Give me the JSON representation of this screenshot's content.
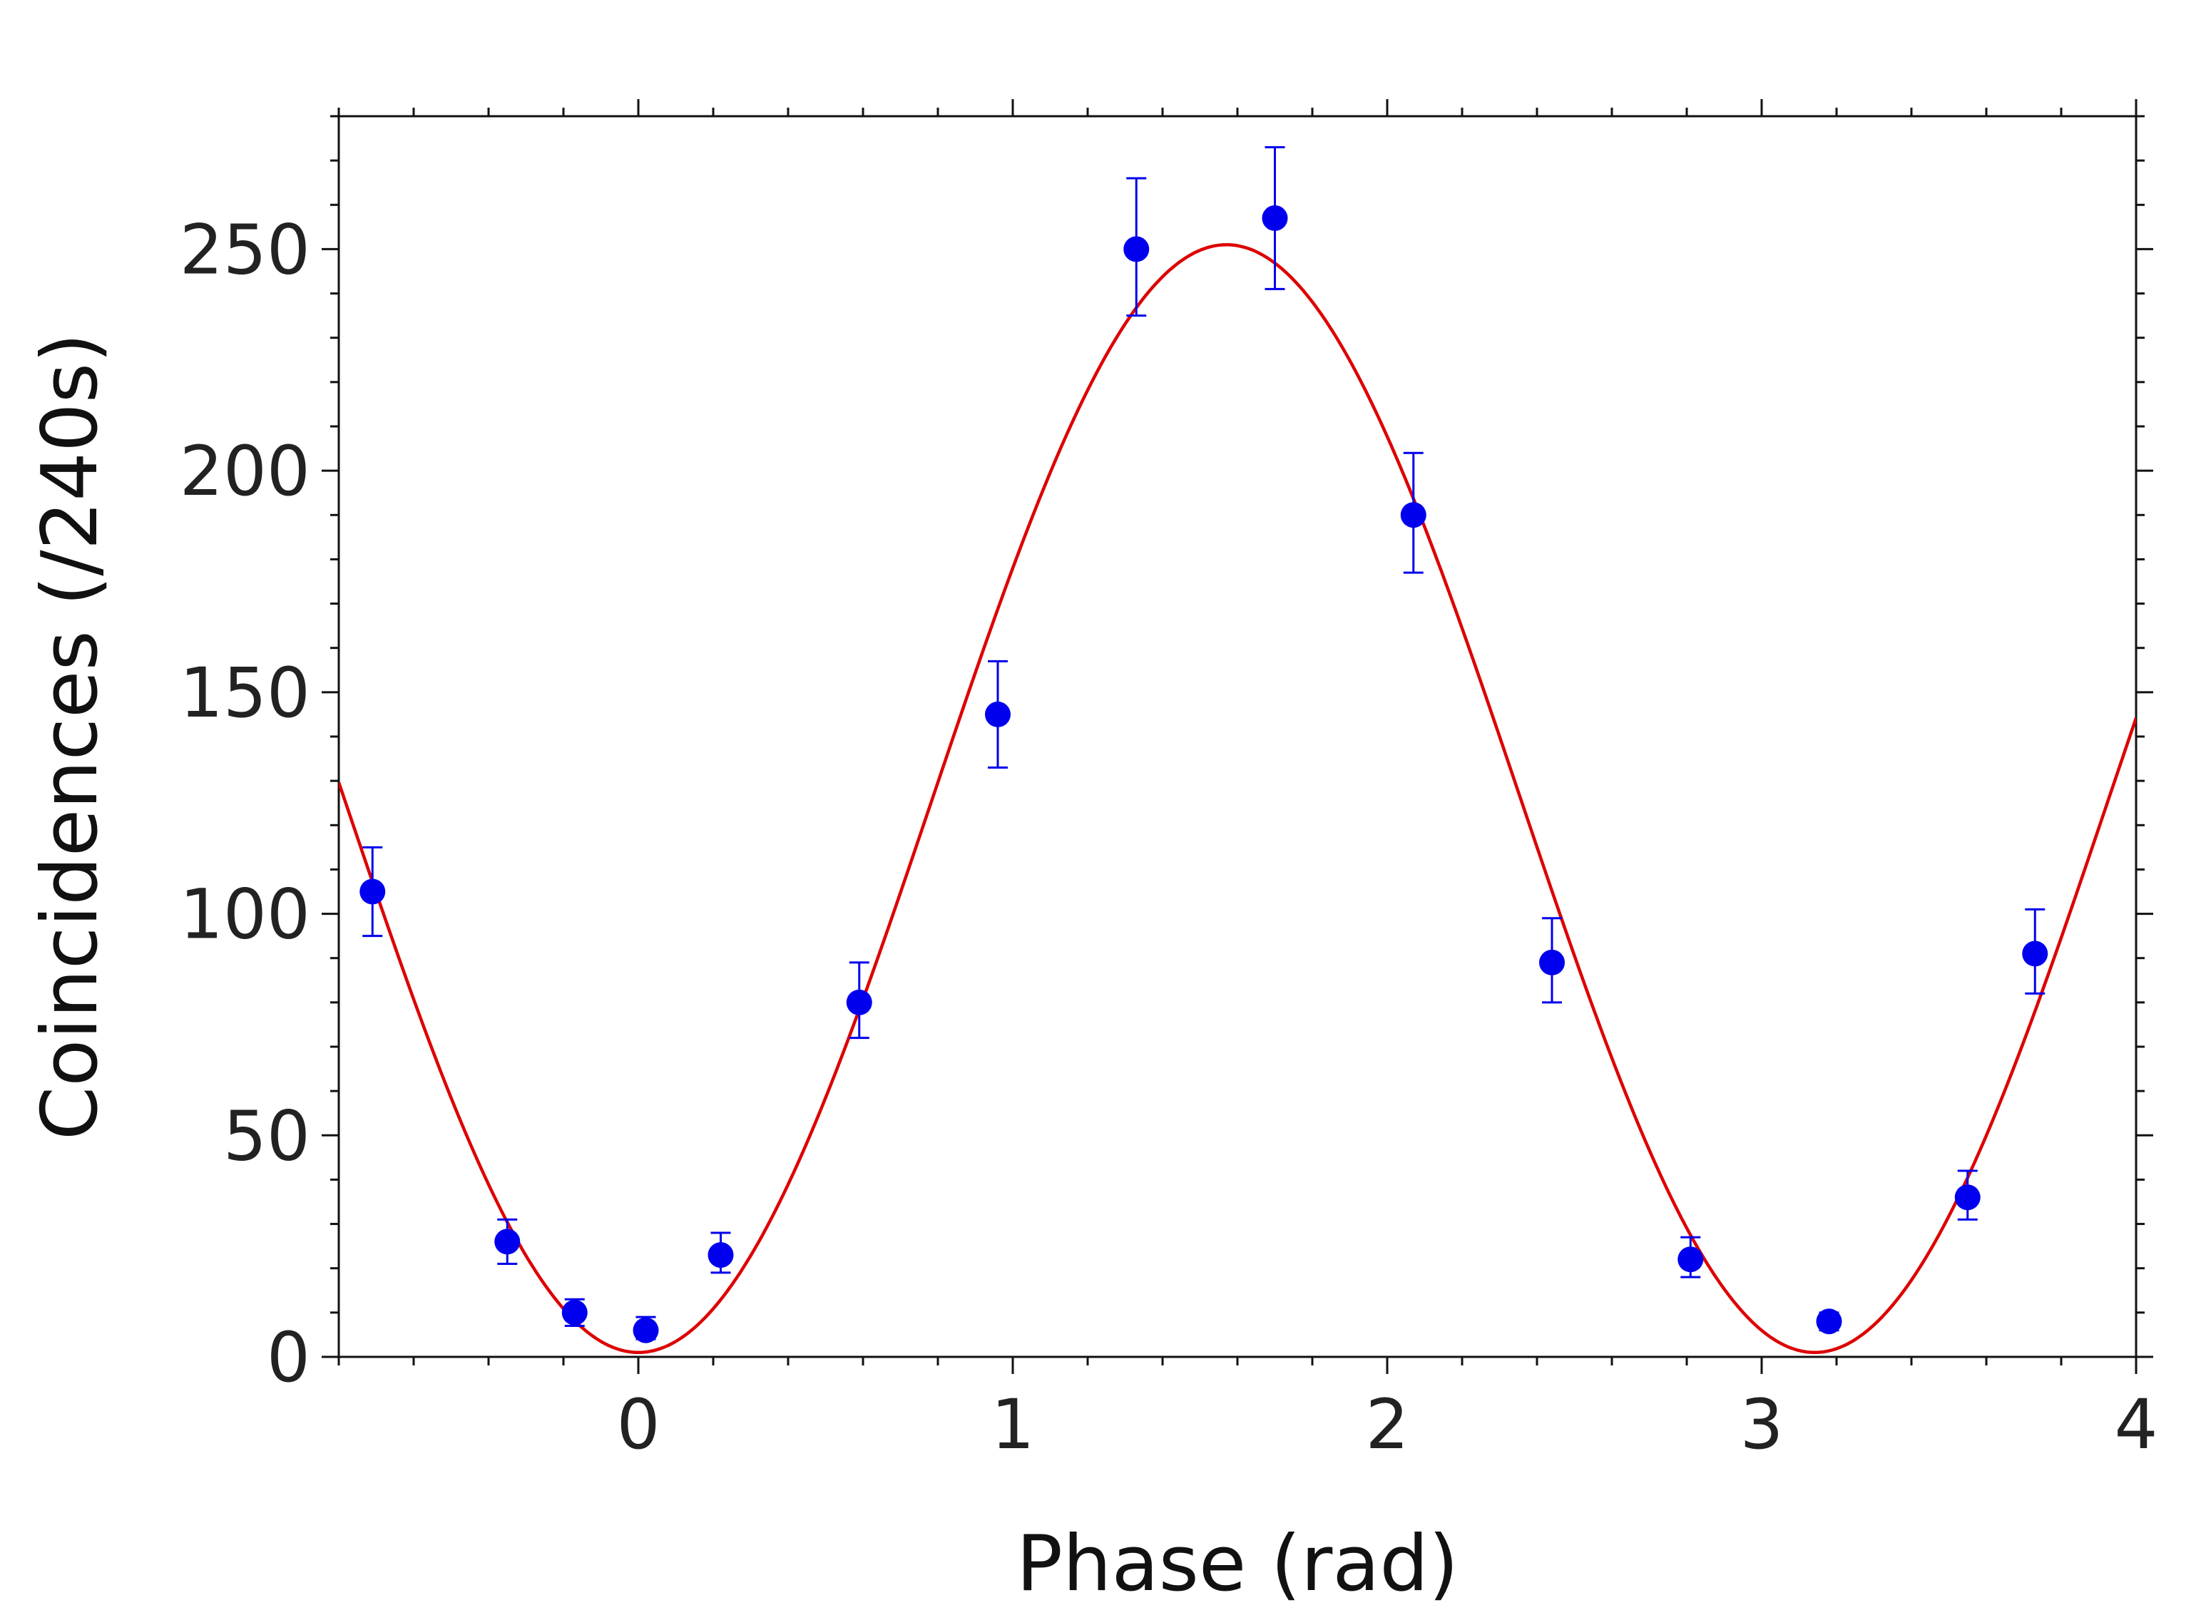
{
  "chart_data": {
    "type": "scatter",
    "title": "",
    "xlabel": "Phase (rad)",
    "ylabel": "Coincidences (/240s)",
    "xlim": [
      -0.8,
      4
    ],
    "ylim": [
      0,
      280
    ],
    "x_ticks": [
      0,
      1,
      2,
      3,
      4
    ],
    "x_tick_labels": [
      "0",
      "1",
      "2",
      "3",
      "4"
    ],
    "y_ticks": [
      0,
      50,
      100,
      150,
      200,
      250
    ],
    "y_tick_labels": [
      "0",
      "50",
      "100",
      "150",
      "200",
      "250"
    ],
    "grid": false,
    "series": [
      {
        "kind": "points_with_error_bars",
        "color": "#0000ee",
        "points": [
          {
            "x": -0.71,
            "y": 105,
            "lo": 95,
            "hi": 115
          },
          {
            "x": -0.35,
            "y": 26,
            "lo": 21,
            "hi": 31
          },
          {
            "x": -0.17,
            "y": 10,
            "lo": 7,
            "hi": 13
          },
          {
            "x": 0.02,
            "y": 6,
            "lo": 4,
            "hi": 9
          },
          {
            "x": 0.22,
            "y": 23,
            "lo": 19,
            "hi": 28
          },
          {
            "x": 0.59,
            "y": 80,
            "lo": 72,
            "hi": 89
          },
          {
            "x": 0.96,
            "y": 145,
            "lo": 133,
            "hi": 157
          },
          {
            "x": 1.33,
            "y": 250,
            "lo": 235,
            "hi": 266
          },
          {
            "x": 1.7,
            "y": 257,
            "lo": 241,
            "hi": 273
          },
          {
            "x": 2.07,
            "y": 190,
            "lo": 177,
            "hi": 204
          },
          {
            "x": 2.44,
            "y": 89,
            "lo": 80,
            "hi": 99
          },
          {
            "x": 2.81,
            "y": 22,
            "lo": 18,
            "hi": 27
          },
          {
            "x": 3.18,
            "y": 8,
            "lo": 6,
            "hi": 10
          },
          {
            "x": 3.55,
            "y": 36,
            "lo": 31,
            "hi": 42
          },
          {
            "x": 3.73,
            "y": 91,
            "lo": 82,
            "hi": 101
          }
        ]
      },
      {
        "kind": "fit_curve",
        "color": "#dd0000",
        "model": "y = A * sin(x - x0)^2 + B",
        "params": {
          "A": 250,
          "B": 1,
          "x0": 0.0
        }
      }
    ]
  }
}
